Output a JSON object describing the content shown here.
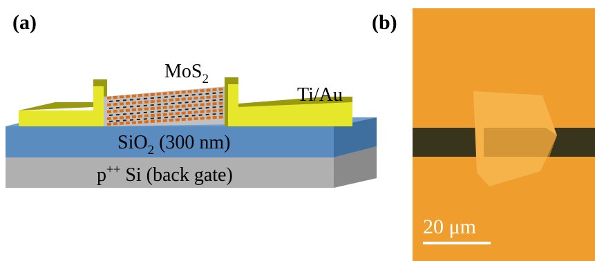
{
  "panel_a": {
    "label": "(a)",
    "mos2": {
      "text": "MoS",
      "sub": "2"
    },
    "contacts": "Ti/Au",
    "oxide": {
      "text": "SiO",
      "sub": "2",
      "rest": " (300 nm)"
    },
    "substrate": {
      "text": "p",
      "sup": "++",
      "rest": " Si (back gate)"
    }
  },
  "panel_b": {
    "label": "(b)",
    "scale_bar": "20 μm"
  }
}
